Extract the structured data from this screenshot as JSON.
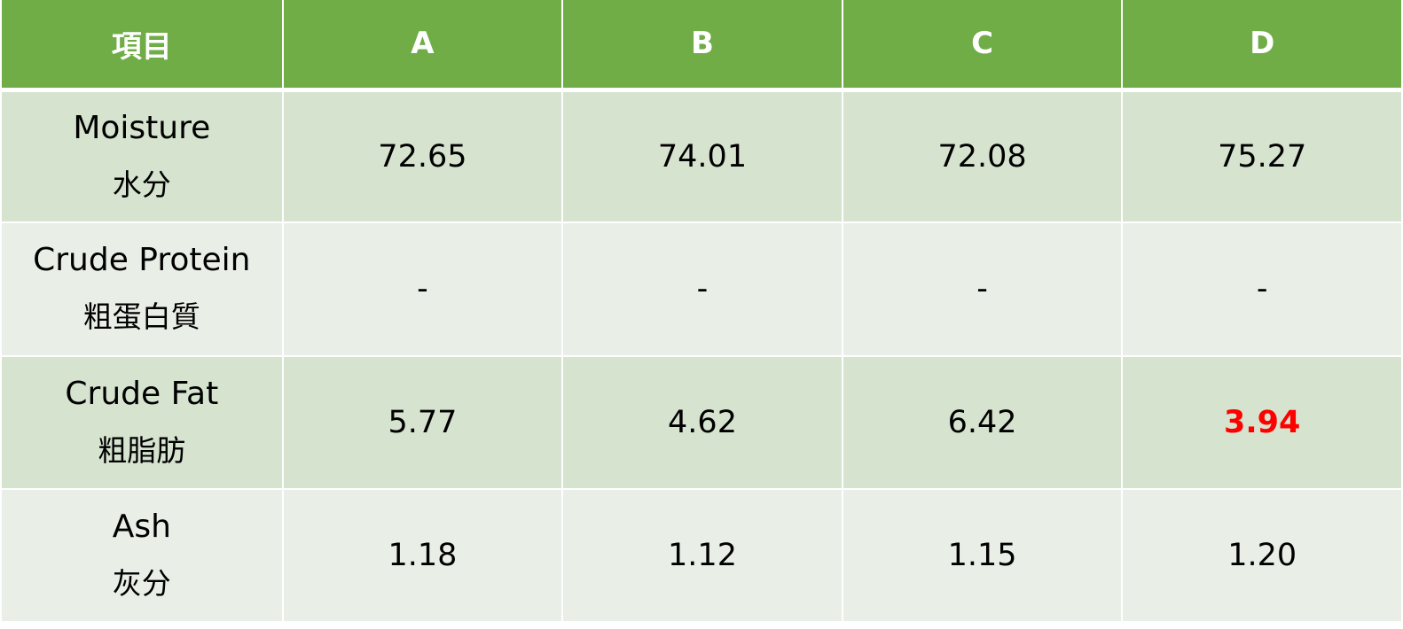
{
  "header": {
    "item": "項目",
    "columns": [
      "A",
      "B",
      "C",
      "D"
    ]
  },
  "rows": [
    {
      "label_en": "Moisture",
      "label_zh": "水分",
      "values": [
        "72.65",
        "74.01",
        "72.08",
        "75.27"
      ]
    },
    {
      "label_en": "Crude Protein",
      "label_zh": "粗蛋白質",
      "values": [
        "-",
        "-",
        "-",
        "-"
      ]
    },
    {
      "label_en": "Crude Fat",
      "label_zh": "粗脂肪",
      "values": [
        "5.77",
        "4.62",
        "6.42",
        "3.94"
      ],
      "highlight_index": 3
    },
    {
      "label_en": "Ash",
      "label_zh": "灰分",
      "values": [
        "1.18",
        "1.12",
        "1.15",
        "1.20"
      ]
    }
  ],
  "colors": {
    "header_bg": "#70ad47",
    "row_odd_bg": "#d6e3cf",
    "row_even_bg": "#e9efe7",
    "highlight": "#ff0000"
  }
}
